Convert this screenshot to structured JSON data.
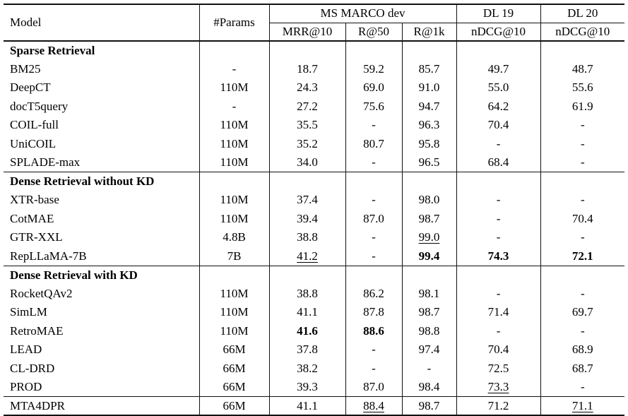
{
  "page": {
    "background_color": "#ffffff",
    "text_color": "#000000",
    "line_color": "#111111"
  },
  "table": {
    "header": {
      "model": "Model",
      "params": "#Params",
      "groups": [
        {
          "label": "MS MARCO dev",
          "span": 3
        },
        {
          "label": "DL 19",
          "span": 1
        },
        {
          "label": "DL 20",
          "span": 1
        }
      ],
      "sub_columns": [
        "MRR@10",
        "R@50",
        "R@1k",
        "nDCG@10",
        "nDCG@10"
      ]
    },
    "emphasis_legend": {
      "bold": "b",
      "underline": "u"
    },
    "sections": [
      {
        "title": "Sparse Retrieval",
        "rows": [
          {
            "model": "BM25",
            "params": "-",
            "values": [
              "18.7",
              "59.2",
              "85.7",
              "49.7",
              "48.7"
            ],
            "styles": [
              "",
              "",
              "",
              "",
              ""
            ]
          },
          {
            "model": "DeepCT",
            "params": "110M",
            "values": [
              "24.3",
              "69.0",
              "91.0",
              "55.0",
              "55.6"
            ],
            "styles": [
              "",
              "",
              "",
              "",
              ""
            ]
          },
          {
            "model": "docT5query",
            "params": "-",
            "values": [
              "27.2",
              "75.6",
              "94.7",
              "64.2",
              "61.9"
            ],
            "styles": [
              "",
              "",
              "",
              "",
              ""
            ]
          },
          {
            "model": "COIL-full",
            "params": "110M",
            "values": [
              "35.5",
              "-",
              "96.3",
              "70.4",
              "-"
            ],
            "styles": [
              "",
              "",
              "",
              "",
              ""
            ]
          },
          {
            "model": "UniCOIL",
            "params": "110M",
            "values": [
              "35.2",
              "80.7",
              "95.8",
              "-",
              "-"
            ],
            "styles": [
              "",
              "",
              "",
              "",
              ""
            ]
          },
          {
            "model": "SPLADE-max",
            "params": "110M",
            "values": [
              "34.0",
              "-",
              "96.5",
              "68.4",
              "-"
            ],
            "styles": [
              "",
              "",
              "",
              "",
              ""
            ]
          }
        ]
      },
      {
        "title": "Dense Retrieval without KD",
        "rows": [
          {
            "model": "XTR-base",
            "params": "110M",
            "values": [
              "37.4",
              "-",
              "98.0",
              "-",
              "-"
            ],
            "styles": [
              "",
              "",
              "",
              "",
              ""
            ]
          },
          {
            "model": "CotMAE",
            "params": "110M",
            "values": [
              "39.4",
              "87.0",
              "98.7",
              "-",
              "70.4"
            ],
            "styles": [
              "",
              "",
              "",
              "",
              ""
            ]
          },
          {
            "model": "GTR-XXL",
            "params": "4.8B",
            "values": [
              "38.8",
              "-",
              "99.0",
              "-",
              "-"
            ],
            "styles": [
              "",
              "",
              "u",
              "",
              ""
            ]
          },
          {
            "model": "RepLLaMA-7B",
            "params": "7B",
            "values": [
              "41.2",
              "-",
              "99.4",
              "74.3",
              "72.1"
            ],
            "styles": [
              "u",
              "",
              "b",
              "b",
              "b"
            ]
          }
        ]
      },
      {
        "title": "Dense Retrieval with KD",
        "rows": [
          {
            "model": "RocketQAv2",
            "params": "110M",
            "values": [
              "38.8",
              "86.2",
              "98.1",
              "-",
              "-"
            ],
            "styles": [
              "",
              "",
              "",
              "",
              ""
            ]
          },
          {
            "model": "SimLM",
            "params": "110M",
            "values": [
              "41.1",
              "87.8",
              "98.7",
              "71.4",
              "69.7"
            ],
            "styles": [
              "",
              "",
              "",
              "",
              ""
            ]
          },
          {
            "model": "RetroMAE",
            "params": "110M",
            "values": [
              "41.6",
              "88.6",
              "98.8",
              "-",
              "-"
            ],
            "styles": [
              "b",
              "b",
              "",
              "",
              ""
            ]
          },
          {
            "model": "LEAD",
            "params": "66M",
            "values": [
              "37.8",
              "-",
              "97.4",
              "70.4",
              "68.9"
            ],
            "styles": [
              "",
              "",
              "",
              "",
              ""
            ]
          },
          {
            "model": "CL-DRD",
            "params": "66M",
            "values": [
              "38.2",
              "-",
              "-",
              "72.5",
              "68.7"
            ],
            "styles": [
              "",
              "",
              "",
              "",
              ""
            ]
          },
          {
            "model": "PROD",
            "params": "66M",
            "values": [
              "39.3",
              "87.0",
              "98.4",
              "73.3",
              "-"
            ],
            "styles": [
              "",
              "",
              "",
              "u",
              ""
            ]
          }
        ]
      },
      {
        "title": "",
        "rows": [
          {
            "model": "MTA4DPR",
            "params": "66M",
            "values": [
              "41.1",
              "88.4",
              "98.7",
              "71.2",
              "71.1"
            ],
            "styles": [
              "",
              "u",
              "",
              "",
              "u"
            ]
          }
        ]
      }
    ]
  }
}
